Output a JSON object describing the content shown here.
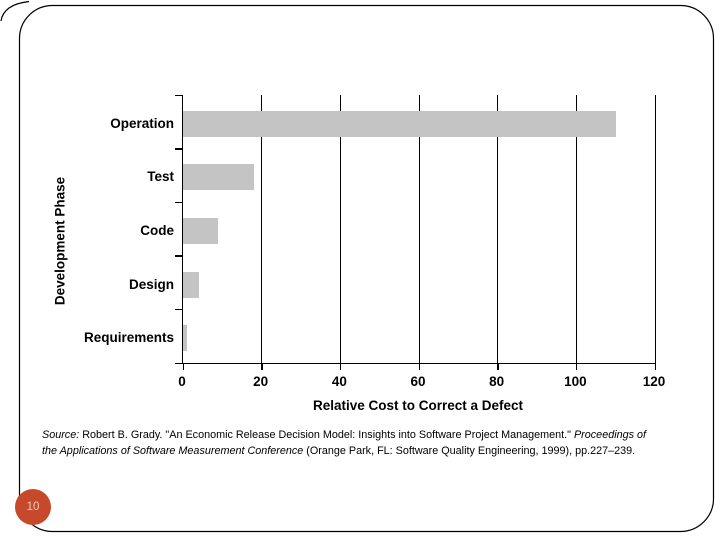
{
  "page": {
    "page_number": "10",
    "badge_color": "#C7492B",
    "badge_text_color": "#F3CDB8"
  },
  "chart_data": {
    "type": "bar",
    "orientation": "horizontal",
    "title": "",
    "categories": [
      "Operation",
      "Test",
      "Code",
      "Design",
      "Requirements"
    ],
    "values": [
      110,
      18,
      9,
      4,
      1
    ],
    "xlabel": "Relative Cost to Correct a Defect",
    "ylabel": "Development Phase",
    "xlim": [
      0,
      120
    ],
    "xticks": [
      0,
      20,
      40,
      60,
      80,
      100,
      120
    ],
    "bar_color": "#C4C4C4",
    "grid": true,
    "legend": false
  },
  "source_note": {
    "italic_lead": "Source:",
    "segment_author_title": " Robert B. Grady. \"An Economic Release Decision Model: Insights into Software Project Management.\" ",
    "italic_proceedings": "Proceedings of the Applications of Software Measurement Conference",
    "segment_publisher": " (Orange Park, FL: Software Quality Engineering, 1999), pp.227–239."
  }
}
